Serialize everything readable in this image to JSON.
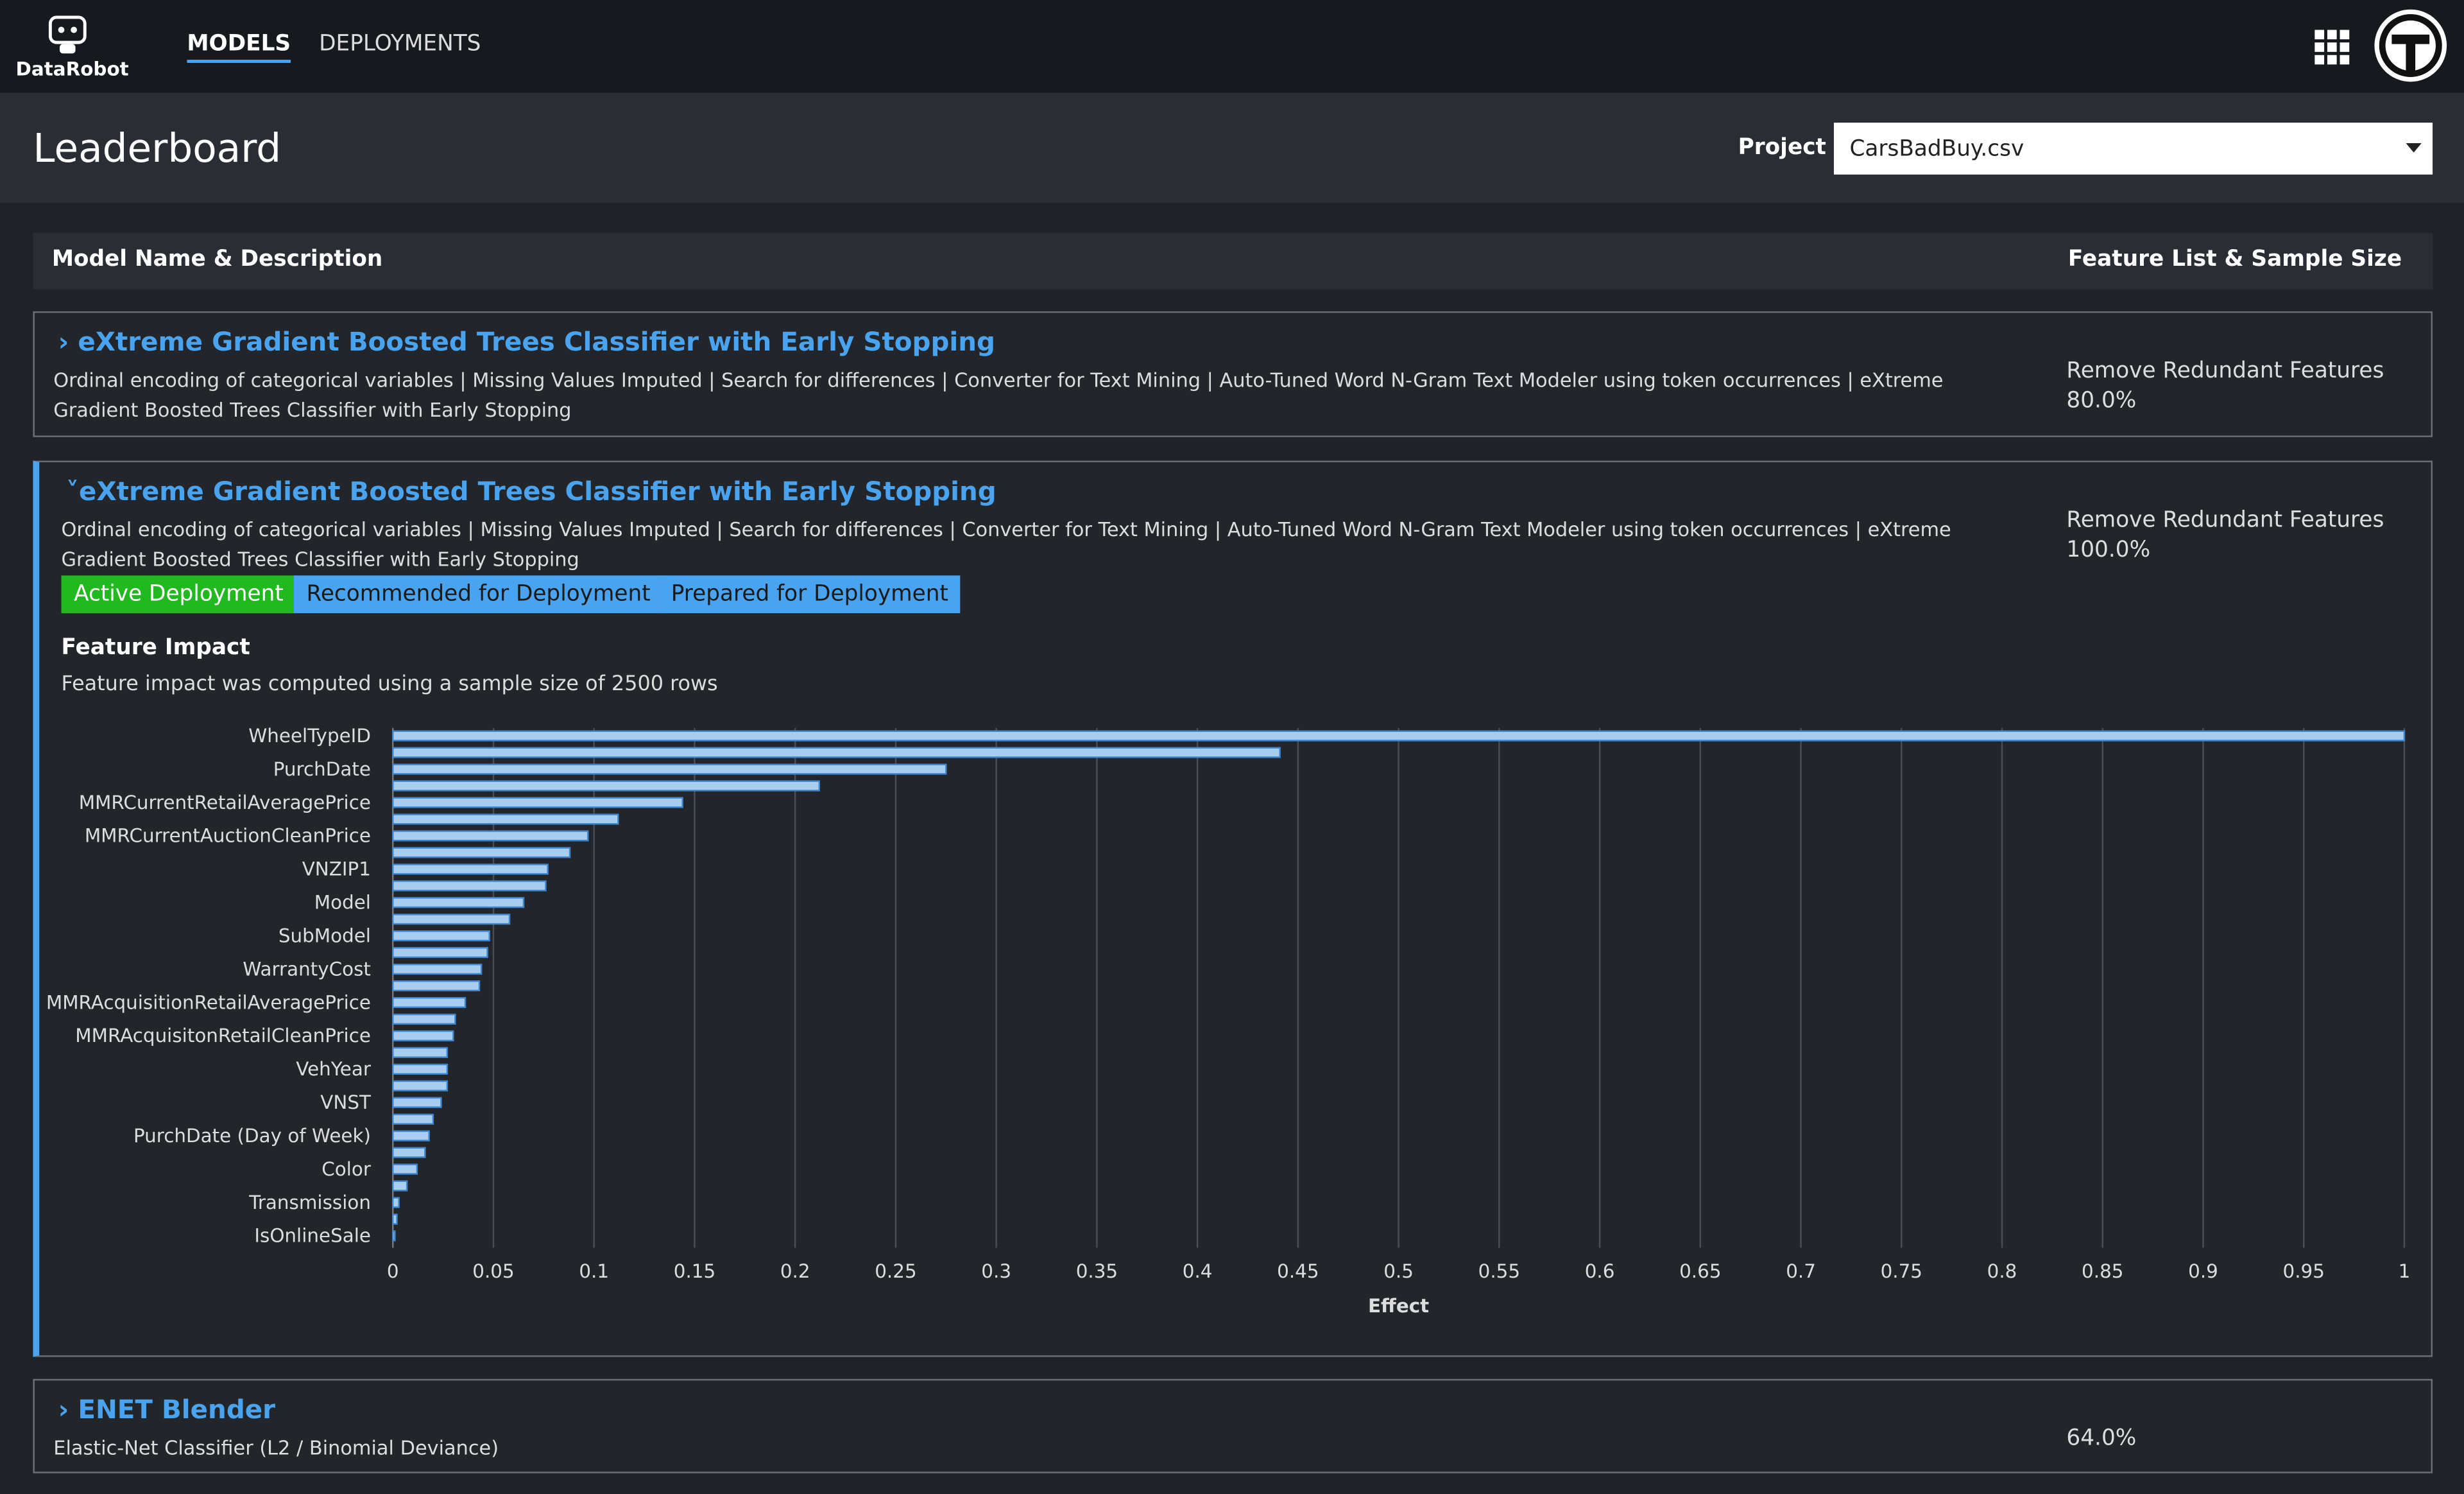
{
  "nav": {
    "logo": "DataRobot",
    "tabs": [
      "MODELS",
      "DEPLOYMENTS"
    ]
  },
  "page": {
    "title": "Leaderboard",
    "project_label": "Project",
    "project_value": "CarsBadBuy.csv"
  },
  "table": {
    "headers": [
      "Model Name & Description",
      "Feature List & Sample Size"
    ],
    "rows": [
      {
        "name": "eXtreme Gradient Boosted Trees Classifier with Early Stopping",
        "description": "Ordinal encoding of categorical variables | Missing Values Imputed | Search for differences | Converter for Text Mining | Auto-Tuned Word N-Gram Text Modeler using token occurrences | eXtreme Gradient Boosted Trees Classifier with Early Stopping",
        "feature_list": "Remove Redundant Features",
        "sample_size": "80.0%"
      },
      {
        "name": "eXtreme Gradient Boosted Trees Classifier with Early Stopping",
        "description": "Ordinal encoding of categorical variables | Missing Values Imputed | Search for differences | Converter for Text Mining | Auto-Tuned Word N-Gram Text Modeler using token occurrences | eXtreme Gradient Boosted Trees Classifier with Early Stopping",
        "feature_list": "Remove Redundant Features",
        "sample_size": "100.0%",
        "badges": [
          "Active Deployment",
          "Recommended for Deployment",
          "Prepared for Deployment"
        ]
      },
      {
        "name": "ENET Blender",
        "description": "Elastic-Net Classifier (L2 / Binomial Deviance)",
        "sample_size": "64.0%"
      }
    ]
  },
  "feature_impact": {
    "title": "Feature Impact",
    "note": "Feature impact was computed using a sample size of 2500 rows"
  },
  "chart_data": {
    "type": "hbar",
    "categories": [
      "WheelTypeID",
      null,
      "PurchDate",
      null,
      "MMRCurrentRetailAveragePrice",
      null,
      "MMRCurrentAuctionCleanPrice",
      null,
      "VNZIP1",
      null,
      "Model",
      null,
      "SubModel",
      null,
      "WarrantyCost",
      null,
      "MMRAcquisitionRetailAveragePrice",
      null,
      "MMRAcquisitonRetailCleanPrice",
      null,
      "VehYear",
      null,
      "VNST",
      null,
      "PurchDate (Day of Week)",
      null,
      "Color",
      null,
      "Transmission",
      null,
      "IsOnlineSale"
    ],
    "values": [
      1.0,
      0.441,
      0.275,
      0.212,
      0.144,
      0.112,
      0.097,
      0.088,
      0.077,
      0.076,
      0.065,
      0.058,
      0.048,
      0.047,
      0.044,
      0.043,
      0.036,
      0.031,
      0.03,
      0.027,
      0.027,
      0.027,
      0.024,
      0.02,
      0.018,
      0.016,
      0.012,
      0.007,
      0.003,
      0.002,
      0.001
    ],
    "color": "#a9cdee",
    "edge_color": "#3f86cf",
    "xlabel": "Effect",
    "xlim": [
      0,
      1
    ],
    "xticks": [
      0,
      0.05,
      0.1,
      0.15,
      0.2,
      0.25,
      0.3,
      0.35,
      0.4,
      0.45,
      0.5,
      0.55,
      0.6,
      0.65,
      0.7,
      0.75,
      0.8,
      0.85,
      0.9,
      0.95,
      1
    ],
    "grid": true
  }
}
